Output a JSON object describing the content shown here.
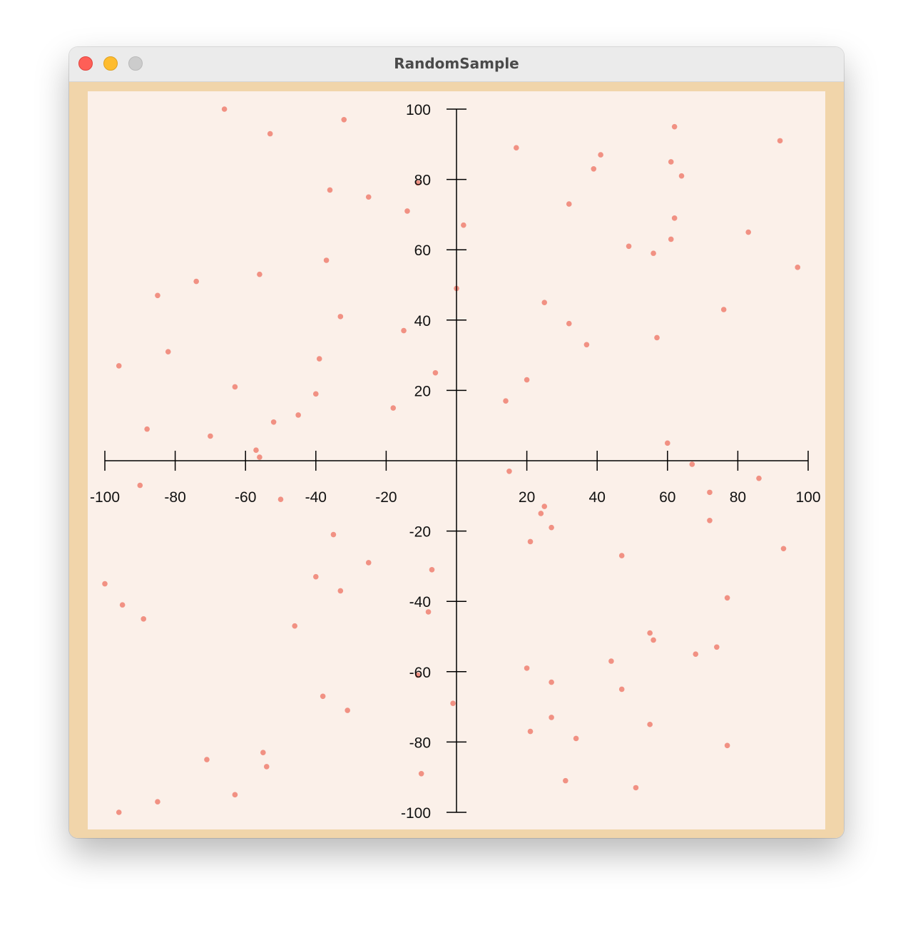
{
  "window": {
    "title": "RandomSample"
  },
  "colors": {
    "frame": "#f1d5aa",
    "background": "#fbf0e9",
    "point": "#f08678",
    "axis": "#000000"
  },
  "chart_data": {
    "type": "scatter",
    "xlim": [
      -100,
      100
    ],
    "ylim": [
      -100,
      100
    ],
    "x_ticks": [
      -100,
      -80,
      -60,
      -40,
      -20,
      20,
      40,
      60,
      80,
      100
    ],
    "y_ticks": [
      100,
      80,
      60,
      40,
      20,
      -20,
      -40,
      -60,
      -80,
      -100
    ],
    "grid": false,
    "points": [
      {
        "x": -66,
        "y": 100
      },
      {
        "x": -53,
        "y": 93
      },
      {
        "x": -32,
        "y": 97
      },
      {
        "x": -36,
        "y": 77
      },
      {
        "x": -25,
        "y": 75
      },
      {
        "x": -11,
        "y": 79
      },
      {
        "x": -14,
        "y": 71
      },
      {
        "x": 2,
        "y": 67
      },
      {
        "x": -37,
        "y": 57
      },
      {
        "x": -56,
        "y": 53
      },
      {
        "x": -74,
        "y": 51
      },
      {
        "x": -85,
        "y": 47
      },
      {
        "x": 0,
        "y": 49
      },
      {
        "x": -33,
        "y": 41
      },
      {
        "x": -15,
        "y": 37
      },
      {
        "x": -82,
        "y": 31
      },
      {
        "x": -39,
        "y": 29
      },
      {
        "x": -96,
        "y": 27
      },
      {
        "x": -6,
        "y": 25
      },
      {
        "x": -63,
        "y": 21
      },
      {
        "x": -40,
        "y": 19
      },
      {
        "x": -18,
        "y": 15
      },
      {
        "x": -45,
        "y": 13
      },
      {
        "x": -52,
        "y": 11
      },
      {
        "x": -88,
        "y": 9
      },
      {
        "x": -70,
        "y": 7
      },
      {
        "x": -57,
        "y": 3
      },
      {
        "x": -56,
        "y": 1
      },
      {
        "x": 17,
        "y": 89
      },
      {
        "x": 62,
        "y": 95
      },
      {
        "x": 92,
        "y": 91
      },
      {
        "x": 41,
        "y": 87
      },
      {
        "x": 39,
        "y": 83
      },
      {
        "x": 61,
        "y": 85
      },
      {
        "x": 64,
        "y": 81
      },
      {
        "x": 32,
        "y": 73
      },
      {
        "x": 62,
        "y": 69
      },
      {
        "x": 83,
        "y": 65
      },
      {
        "x": 61,
        "y": 63
      },
      {
        "x": 49,
        "y": 61
      },
      {
        "x": 56,
        "y": 59
      },
      {
        "x": 97,
        "y": 55
      },
      {
        "x": 25,
        "y": 45
      },
      {
        "x": 76,
        "y": 43
      },
      {
        "x": 32,
        "y": 39
      },
      {
        "x": 57,
        "y": 35
      },
      {
        "x": 37,
        "y": 33
      },
      {
        "x": 20,
        "y": 23
      },
      {
        "x": 14,
        "y": 17
      },
      {
        "x": 60,
        "y": 5
      },
      {
        "x": 67,
        "y": -1
      },
      {
        "x": 15,
        "y": -3
      },
      {
        "x": 86,
        "y": -5
      },
      {
        "x": -90,
        "y": -7
      },
      {
        "x": 72,
        "y": -9
      },
      {
        "x": -50,
        "y": -11
      },
      {
        "x": 25,
        "y": -13
      },
      {
        "x": 24,
        "y": -15
      },
      {
        "x": 72,
        "y": -17
      },
      {
        "x": 27,
        "y": -19
      },
      {
        "x": -35,
        "y": -21
      },
      {
        "x": 21,
        "y": -23
      },
      {
        "x": 93,
        "y": -25
      },
      {
        "x": 47,
        "y": -27
      },
      {
        "x": -25,
        "y": -29
      },
      {
        "x": -7,
        "y": -31
      },
      {
        "x": -40,
        "y": -33
      },
      {
        "x": -100,
        "y": -35
      },
      {
        "x": -33,
        "y": -37
      },
      {
        "x": 77,
        "y": -39
      },
      {
        "x": -95,
        "y": -41
      },
      {
        "x": -8,
        "y": -43
      },
      {
        "x": -89,
        "y": -45
      },
      {
        "x": -46,
        "y": -47
      },
      {
        "x": 55,
        "y": -49
      },
      {
        "x": 56,
        "y": -51
      },
      {
        "x": 74,
        "y": -53
      },
      {
        "x": 68,
        "y": -55
      },
      {
        "x": 44,
        "y": -57
      },
      {
        "x": 20,
        "y": -59
      },
      {
        "x": -11,
        "y": -61
      },
      {
        "x": 27,
        "y": -63
      },
      {
        "x": 47,
        "y": -65
      },
      {
        "x": -38,
        "y": -67
      },
      {
        "x": -1,
        "y": -69
      },
      {
        "x": -31,
        "y": -71
      },
      {
        "x": 27,
        "y": -73
      },
      {
        "x": 55,
        "y": -75
      },
      {
        "x": 21,
        "y": -77
      },
      {
        "x": 34,
        "y": -79
      },
      {
        "x": 77,
        "y": -81
      },
      {
        "x": -55,
        "y": -83
      },
      {
        "x": -71,
        "y": -85
      },
      {
        "x": -54,
        "y": -87
      },
      {
        "x": -10,
        "y": -89
      },
      {
        "x": 31,
        "y": -91
      },
      {
        "x": 51,
        "y": -93
      },
      {
        "x": -63,
        "y": -95
      },
      {
        "x": -85,
        "y": -97
      },
      {
        "x": -96,
        "y": -100
      }
    ]
  }
}
